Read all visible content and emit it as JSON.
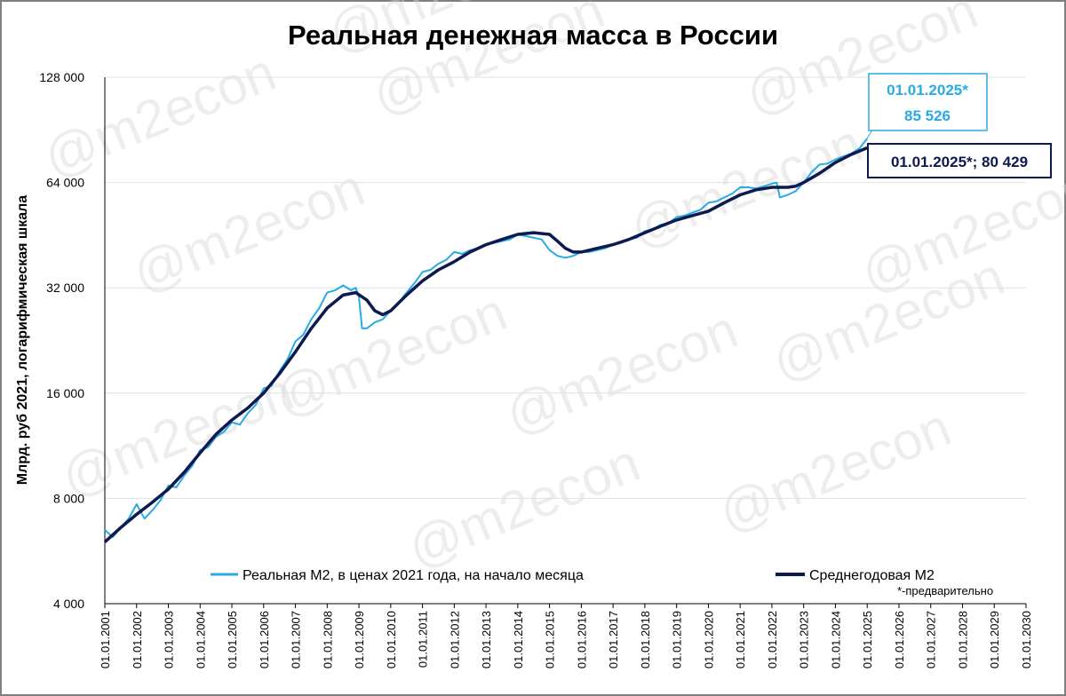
{
  "chart_data": {
    "type": "line",
    "title": "Реальная денежная масса в России",
    "ylabel": "Млрд. руб 2021, логарифмическая шкала",
    "yscale": "log2",
    "ylim": [
      4000,
      128000
    ],
    "y_ticks": [
      "4 000",
      "8 000",
      "16 000",
      "32 000",
      "64 000",
      "128 000"
    ],
    "y_tick_values": [
      4000,
      8000,
      16000,
      32000,
      64000,
      128000
    ],
    "xlim": [
      2001,
      2030
    ],
    "x_ticks": [
      "01.01.2001",
      "01.01.2002",
      "01.01.2003",
      "01.01.2004",
      "01.01.2005",
      "01.01.2006",
      "01.01.2007",
      "01.01.2008",
      "01.01.2009",
      "01.01.2010",
      "01.01.2011",
      "01.01.2012",
      "01.01.2013",
      "01.01.2014",
      "01.01.2015",
      "01.01.2016",
      "01.01.2017",
      "01.01.2018",
      "01.01.2019",
      "01.01.2020",
      "01.01.2021",
      "01.01.2022",
      "01.01.2023",
      "01.01.2024",
      "01.01.2025",
      "01.01.2026",
      "01.01.2027",
      "01.01.2028",
      "01.01.2029",
      "01.01.2030"
    ],
    "grid": true,
    "legend_position": "bottom",
    "series": [
      {
        "name": "Реальная М2, в ценах 2021 года, на начало месяца",
        "color": "#29abe2",
        "x": [
          2001.0,
          2001.25,
          2001.5,
          2001.75,
          2002.0,
          2002.25,
          2002.5,
          2002.75,
          2003.0,
          2003.25,
          2003.5,
          2003.75,
          2004.0,
          2004.25,
          2004.5,
          2004.75,
          2005.0,
          2005.25,
          2005.5,
          2005.75,
          2006.0,
          2006.25,
          2006.5,
          2006.75,
          2007.0,
          2007.25,
          2007.5,
          2007.75,
          2008.0,
          2008.25,
          2008.5,
          2008.75,
          2008.9,
          2009.0,
          2009.1,
          2009.25,
          2009.5,
          2009.75,
          2010.0,
          2010.25,
          2010.5,
          2010.75,
          2011.0,
          2011.25,
          2011.5,
          2011.75,
          2012.0,
          2012.25,
          2012.5,
          2012.75,
          2013.0,
          2013.25,
          2013.5,
          2013.75,
          2014.0,
          2014.25,
          2014.5,
          2014.75,
          2015.0,
          2015.25,
          2015.5,
          2015.75,
          2016.0,
          2016.25,
          2016.5,
          2016.75,
          2017.0,
          2017.25,
          2017.5,
          2017.75,
          2018.0,
          2018.25,
          2018.5,
          2018.75,
          2019.0,
          2019.25,
          2019.5,
          2019.75,
          2020.0,
          2020.25,
          2020.5,
          2020.75,
          2021.0,
          2021.25,
          2021.5,
          2021.75,
          2022.0,
          2022.15,
          2022.25,
          2022.5,
          2022.75,
          2023.0,
          2023.25,
          2023.5,
          2023.75,
          2024.0,
          2024.25,
          2024.5,
          2024.75,
          2025.0
        ],
        "y": [
          6500,
          6200,
          6600,
          7000,
          7700,
          7000,
          7400,
          7900,
          8700,
          8600,
          9300,
          9900,
          11000,
          11200,
          12000,
          12400,
          13200,
          13000,
          14000,
          14800,
          16500,
          16800,
          18500,
          20000,
          22500,
          23500,
          26000,
          28000,
          31000,
          31500,
          32500,
          31500,
          32000,
          30000,
          24500,
          24500,
          25500,
          26000,
          27500,
          29000,
          31000,
          33000,
          35500,
          36000,
          37500,
          38500,
          40500,
          40000,
          41000,
          41500,
          42500,
          43000,
          43500,
          44000,
          45500,
          45000,
          44500,
          44000,
          41000,
          39500,
          39000,
          39500,
          40500,
          40500,
          41000,
          41500,
          42500,
          43000,
          44000,
          44500,
          46500,
          47000,
          48500,
          49000,
          51000,
          51500,
          52500,
          53500,
          56000,
          56500,
          58000,
          59500,
          62000,
          62000,
          61500,
          62500,
          63500,
          64000,
          58000,
          59000,
          60500,
          64000,
          68500,
          72000,
          72500,
          74500,
          76000,
          77500,
          80000,
          85526
        ]
      },
      {
        "name": "Среднегодовая М2",
        "color": "#0d1a4f",
        "x": [
          2001.0,
          2001.5,
          2002.0,
          2002.5,
          2003.0,
          2003.5,
          2004.0,
          2004.5,
          2005.0,
          2005.5,
          2006.0,
          2006.5,
          2007.0,
          2007.5,
          2008.0,
          2008.5,
          2008.9,
          2009.25,
          2009.5,
          2009.75,
          2010.0,
          2010.5,
          2011.0,
          2011.5,
          2012.0,
          2012.5,
          2013.0,
          2013.5,
          2014.0,
          2014.5,
          2015.0,
          2015.25,
          2015.5,
          2015.75,
          2016.0,
          2016.5,
          2017.0,
          2017.5,
          2018.0,
          2018.5,
          2019.0,
          2019.5,
          2020.0,
          2020.5,
          2021.0,
          2021.5,
          2022.0,
          2022.5,
          2022.75,
          2023.0,
          2023.5,
          2024.0,
          2024.5,
          2025.0
        ],
        "y": [
          6000,
          6600,
          7200,
          7800,
          8500,
          9500,
          10800,
          12200,
          13400,
          14500,
          16000,
          18200,
          21000,
          24500,
          28000,
          30500,
          31000,
          29500,
          27500,
          26800,
          27500,
          30500,
          33500,
          36000,
          38000,
          40500,
          42500,
          44000,
          45500,
          46000,
          45500,
          43500,
          41500,
          40500,
          40500,
          41500,
          42500,
          44000,
          46000,
          48000,
          50000,
          51500,
          53000,
          56000,
          59000,
          61000,
          62000,
          62000,
          62500,
          64000,
          68000,
          73000,
          77000,
          80429
        ]
      }
    ],
    "annotations": [
      {
        "line1": "01.01.2025*",
        "line2": "85 526",
        "x": 2025.0,
        "y": 85526,
        "color": "#29abe2"
      },
      {
        "text": "01.01.2025*;  80 429",
        "x": 2025.0,
        "y": 80429,
        "color": "#0d1a4f"
      }
    ],
    "legend": [
      {
        "label": "Реальная М2, в ценах 2021 года, на начало месяца",
        "color": "#29abe2"
      },
      {
        "label": "Среднегодовая М2",
        "color": "#0d1a4f"
      }
    ],
    "footnote": "*-предварительно",
    "watermark": "@m2econ"
  }
}
